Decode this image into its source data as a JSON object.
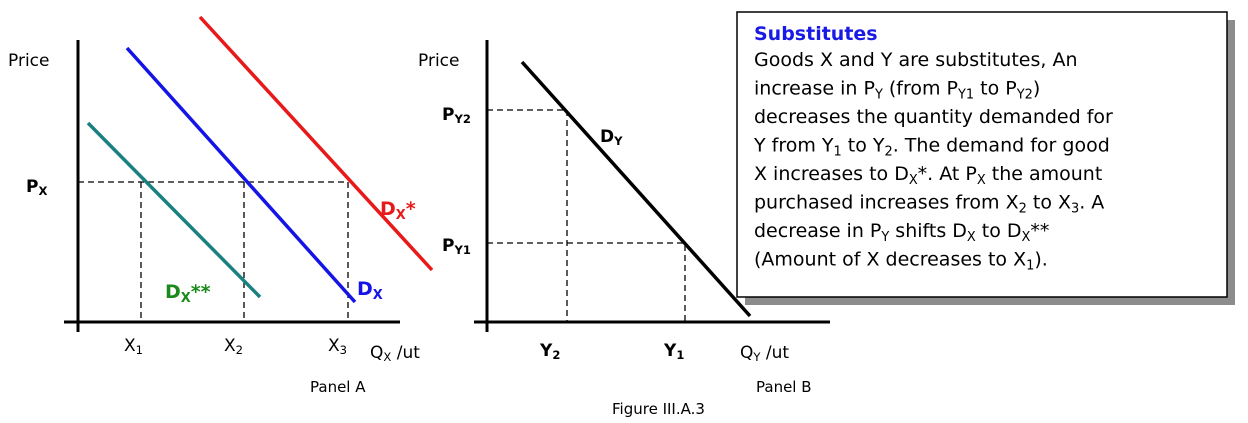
{
  "panel_a": {
    "y_label": "Price",
    "price_label": [
      {
        "text": "P"
      },
      {
        "text": "X",
        "sub": true
      }
    ],
    "curves": [
      [
        {
          "text": "D"
        },
        {
          "text": "X",
          "sub": true
        },
        {
          "text": "*"
        }
      ],
      [
        {
          "text": "D"
        },
        {
          "text": "X",
          "sub": true
        }
      ],
      [
        {
          "text": "D"
        },
        {
          "text": "X",
          "sub": true
        },
        {
          "text": "**"
        }
      ]
    ],
    "x_ticks": [
      [
        {
          "text": "X"
        },
        {
          "text": "1",
          "sub": true
        }
      ],
      [
        {
          "text": "X"
        },
        {
          "text": "2",
          "sub": true
        }
      ],
      [
        {
          "text": "X"
        },
        {
          "text": "3",
          "sub": true
        }
      ]
    ],
    "x_label": [
      {
        "text": "Q"
      },
      {
        "text": "X",
        "sub": true
      },
      {
        "text": " /ut"
      }
    ],
    "caption": "Panel A"
  },
  "panel_b": {
    "y_label": "Price",
    "price_labels": [
      [
        {
          "text": "P"
        },
        {
          "text": "Y2",
          "sub": true
        }
      ],
      [
        {
          "text": "P"
        },
        {
          "text": "Y1",
          "sub": true
        }
      ]
    ],
    "curve": [
      {
        "text": "D"
      },
      {
        "text": "Y",
        "sub": true
      }
    ],
    "x_ticks": [
      [
        {
          "text": "Y"
        },
        {
          "text": "2",
          "sub": true
        }
      ],
      [
        {
          "text": "Y"
        },
        {
          "text": "1",
          "sub": true
        }
      ]
    ],
    "x_label": [
      {
        "text": "Q"
      },
      {
        "text": "Y",
        "sub": true
      },
      {
        "text": " /ut"
      }
    ],
    "caption": "Panel B"
  },
  "figure_caption": "Figure III.A.3",
  "note": {
    "title": "Substitutes",
    "lines": [
      [
        {
          "text": "Goods X and Y are substitutes, An"
        }
      ],
      [
        {
          "text": "increase in P"
        },
        {
          "text": "Y",
          "sub": true
        },
        {
          "text": " (from P"
        },
        {
          "text": "Y1",
          "sub": true
        },
        {
          "text": " to P"
        },
        {
          "text": "Y2",
          "sub": true
        },
        {
          "text": ")"
        }
      ],
      [
        {
          "text": "decreases the quantity demanded for"
        }
      ],
      [
        {
          "text": "Y from Y"
        },
        {
          "text": "1",
          "sub": true
        },
        {
          "text": " to Y"
        },
        {
          "text": "2",
          "sub": true
        },
        {
          "text": ". The demand for good"
        }
      ],
      [
        {
          "text": "X increases to D"
        },
        {
          "text": "X",
          "sub": true
        },
        {
          "text": "*. At P"
        },
        {
          "text": "X",
          "sub": true
        },
        {
          "text": " the amount"
        }
      ],
      [
        {
          "text": "purchased increases from X"
        },
        {
          "text": "2",
          "sub": true
        },
        {
          "text": " to X"
        },
        {
          "text": "3",
          "sub": true
        },
        {
          "text": ". A"
        }
      ],
      [
        {
          "text": "decrease in P"
        },
        {
          "text": "Y",
          "sub": true
        },
        {
          "text": " shifts D"
        },
        {
          "text": "X",
          "sub": true
        },
        {
          "text": " to D"
        },
        {
          "text": "X",
          "sub": true
        },
        {
          "text": "**"
        }
      ],
      [
        {
          "text": "(Amount of X decreases to X"
        },
        {
          "text": "1",
          "sub": true
        },
        {
          "text": ")."
        }
      ]
    ]
  }
}
